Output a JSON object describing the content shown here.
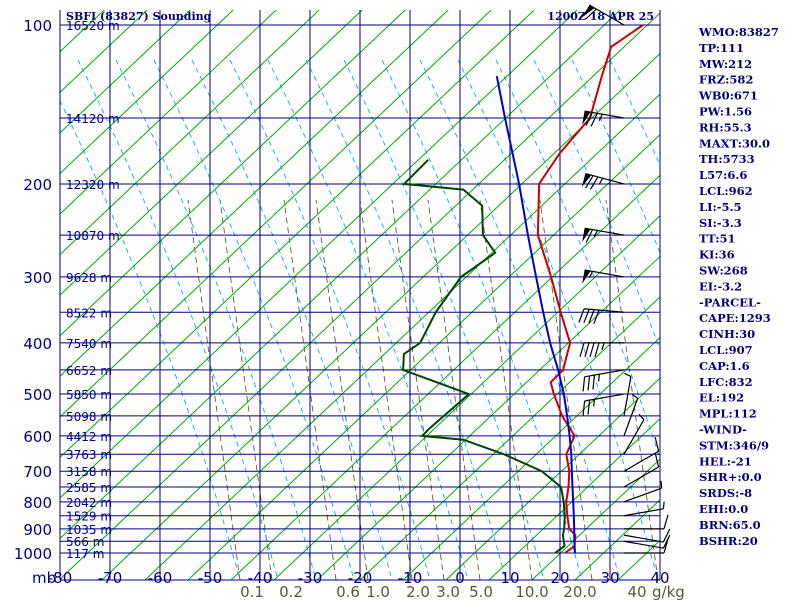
{
  "header": {
    "station": "SBFI (83827) Sounding",
    "datetime": "1200Z 18 APR 25"
  },
  "chart_data": {
    "type": "skew-t",
    "pressure_unit": "mb",
    "pressure_ticks": [
      "100",
      "200",
      "300",
      "400",
      "500",
      "600",
      "700",
      "800",
      "900",
      "1000"
    ],
    "pressure_axis_label": "mb",
    "temp_ticks": [
      "-80",
      "-70",
      "-60",
      "-50",
      "-40",
      "-30",
      "-20",
      "-10",
      "0",
      "10",
      "20",
      "30",
      "40"
    ],
    "mixing_ratio_labels": [
      "0.1",
      "0.2",
      "0.6",
      "1.0",
      "2.0",
      "3.0",
      "5.0",
      "10.0",
      "20.0",
      "40"
    ],
    "mixing_ratio_unit": "g/kg",
    "height_labels": [
      {
        "p": 100,
        "label": "16520 m"
      },
      {
        "p": 150,
        "label": "14120 m"
      },
      {
        "p": 200,
        "label": "12320 m"
      },
      {
        "p": 250,
        "label": "10870 m"
      },
      {
        "p": 300,
        "label": "9628 m"
      },
      {
        "p": 350,
        "label": "8522 m"
      },
      {
        "p": 400,
        "label": "7540 m"
      },
      {
        "p": 450,
        "label": "6652 m"
      },
      {
        "p": 500,
        "label": "5850 m"
      },
      {
        "p": 550,
        "label": "5098 m"
      },
      {
        "p": 600,
        "label": "4412 m"
      },
      {
        "p": 650,
        "label": "3763 m"
      },
      {
        "p": 700,
        "label": "3158 m"
      },
      {
        "p": 750,
        "label": "2585 m"
      },
      {
        "p": 800,
        "label": "2042 m"
      },
      {
        "p": 850,
        "label": "1529 m"
      },
      {
        "p": 900,
        "label": "1035 m"
      },
      {
        "p": 950,
        "label": "566 m"
      },
      {
        "p": 1000,
        "label": "117 m"
      }
    ],
    "series": [
      {
        "name": "temperature",
        "color": "#cc0000",
        "points": [
          [
            1000,
            21
          ],
          [
            970,
            21.5
          ],
          [
            925,
            19.5
          ],
          [
            900,
            17
          ],
          [
            850,
            14
          ],
          [
            800,
            11
          ],
          [
            750,
            8.5
          ],
          [
            700,
            5.5
          ],
          [
            650,
            1.5
          ],
          [
            600,
            -0.5
          ],
          [
            550,
            -7
          ],
          [
            500,
            -13
          ],
          [
            475,
            -16
          ],
          [
            450,
            -16
          ],
          [
            400,
            -20
          ],
          [
            350,
            -28
          ],
          [
            300,
            -37
          ],
          [
            250,
            -48
          ],
          [
            200,
            -58
          ],
          [
            175,
            -60
          ],
          [
            150,
            -61
          ],
          [
            125,
            -67
          ],
          [
            110,
            -71
          ],
          [
            100,
            -69
          ]
        ]
      },
      {
        "name": "dewpoint",
        "color": "#004400",
        "points": [
          [
            1000,
            19
          ],
          [
            970,
            19.5
          ],
          [
            925,
            17
          ],
          [
            900,
            16
          ],
          [
            850,
            13.5
          ],
          [
            800,
            10.5
          ],
          [
            750,
            7
          ],
          [
            700,
            0
          ],
          [
            650,
            -11
          ],
          [
            610,
            -22
          ],
          [
            600,
            -31
          ],
          [
            580,
            -31
          ],
          [
            500,
            -30
          ],
          [
            450,
            -48
          ],
          [
            420,
            -51
          ],
          [
            400,
            -50
          ],
          [
            350,
            -53
          ],
          [
            300,
            -55
          ],
          [
            270,
            -53
          ],
          [
            250,
            -59
          ],
          [
            220,
            -65
          ],
          [
            205,
            -72
          ],
          [
            200,
            -85
          ],
          [
            180,
            -85
          ]
        ]
      },
      {
        "name": "parcel",
        "color": "#0000cc",
        "points": [
          [
            1000,
            23
          ],
          [
            950,
            20.5
          ],
          [
            900,
            18
          ],
          [
            850,
            15.3
          ],
          [
            800,
            12.4
          ],
          [
            750,
            9.3
          ],
          [
            700,
            6
          ],
          [
            650,
            2.5
          ],
          [
            600,
            -1.5
          ],
          [
            550,
            -6
          ],
          [
            500,
            -11
          ],
          [
            450,
            -17
          ],
          [
            400,
            -24
          ],
          [
            350,
            -31.5
          ],
          [
            300,
            -40
          ],
          [
            250,
            -50
          ],
          [
            200,
            -62
          ],
          [
            150,
            -78
          ],
          [
            125,
            -88
          ]
        ]
      }
    ],
    "wind_barbs": [
      {
        "p": 1000,
        "dir": 90,
        "kt": 10
      },
      {
        "p": 950,
        "dir": 100,
        "kt": 10
      },
      {
        "p": 925,
        "dir": 100,
        "kt": 10
      },
      {
        "p": 900,
        "dir": 90,
        "kt": 10
      },
      {
        "p": 850,
        "dir": 80,
        "kt": 5
      },
      {
        "p": 800,
        "dir": 70,
        "kt": 5
      },
      {
        "p": 750,
        "dir": 60,
        "kt": 10
      },
      {
        "p": 700,
        "dir": 60,
        "kt": 10
      },
      {
        "p": 650,
        "dir": 30,
        "kt": 5
      },
      {
        "p": 600,
        "dir": 20,
        "kt": 5
      },
      {
        "p": 550,
        "dir": 10,
        "kt": 5
      },
      {
        "p": 500,
        "dir": 260,
        "kt": 25
      },
      {
        "p": 450,
        "dir": 260,
        "kt": 35
      },
      {
        "p": 400,
        "dir": 270,
        "kt": 45
      },
      {
        "p": 350,
        "dir": 275,
        "kt": 40
      },
      {
        "p": 300,
        "dir": 280,
        "kt": 55
      },
      {
        "p": 250,
        "dir": 280,
        "kt": 65
      },
      {
        "p": 200,
        "dir": 285,
        "kt": 75
      },
      {
        "p": 150,
        "dir": 280,
        "kt": 75
      },
      {
        "p": 100,
        "dir": 300,
        "kt": 60
      }
    ]
  },
  "indices": [
    "WMO:83827",
    "TP:111",
    "MW:212",
    "FRZ:582",
    "WB0:671",
    "PW:1.56",
    "RH:55.3",
    "MAXT:30.0",
    "TH:5733",
    "L57:6.6",
    "LCL:962",
    "LI:-5.5",
    "SI:-3.3",
    "TT:51",
    "KI:36",
    "SW:268",
    "EI:-3.2",
    "-PARCEL-",
    "CAPE:1293",
    "CINH:30",
    "LCL:907",
    "CAP:1.6",
    "LFC:832",
    "EL:192",
    "MPL:112",
    "-WIND-",
    "STM:346/9",
    "HEL:-21",
    "SHR+:0.0",
    "SRDS:-8",
    "EHI:0.0",
    "BRN:65.0",
    "BSHR:20"
  ],
  "colors": {
    "isobar": "#000080",
    "isotherm": "#000080",
    "dry_adiabat": "#00aa00",
    "moist_adiabat": "#00aaff",
    "mixing_ratio": "#6b5a2a"
  }
}
